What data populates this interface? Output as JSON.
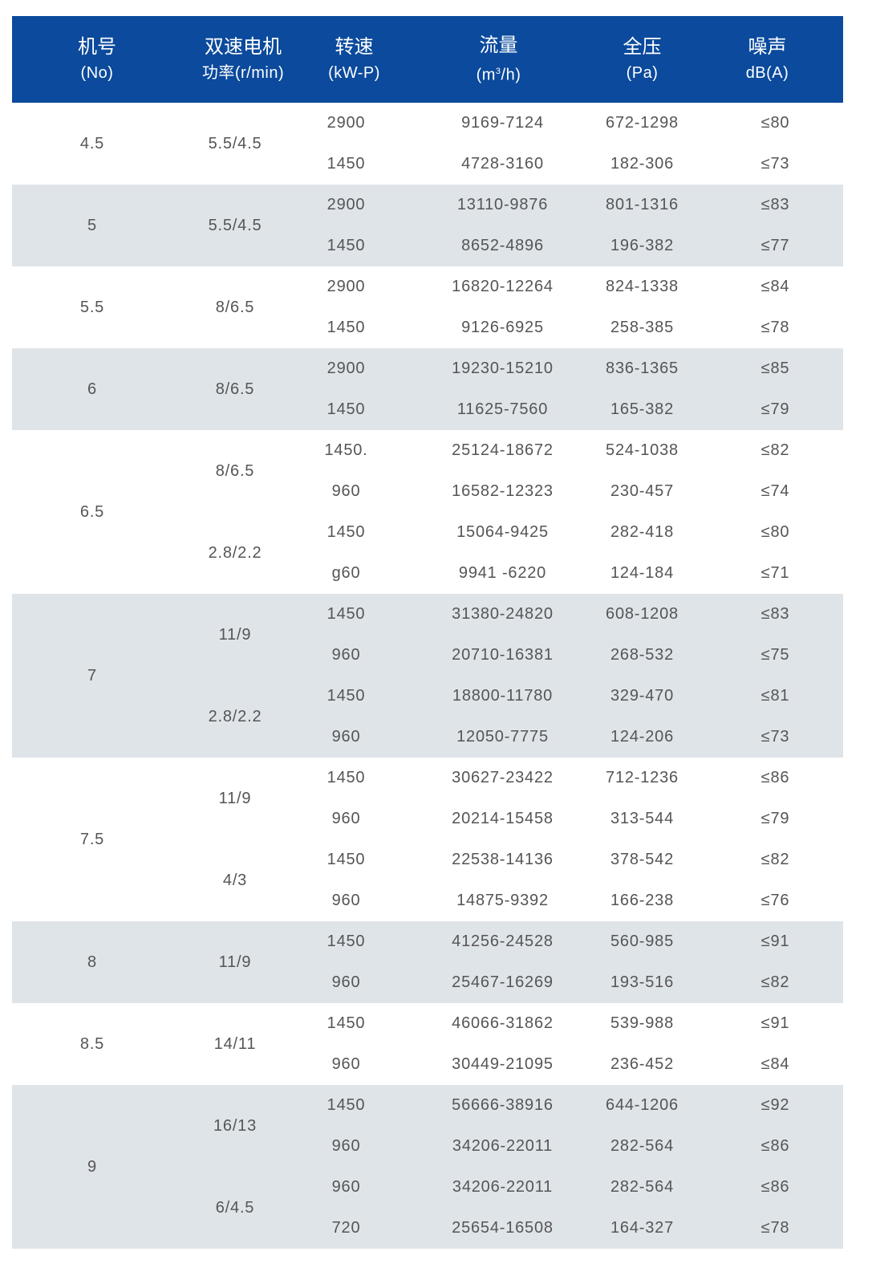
{
  "colors": {
    "header_bg": "#0b4a9c",
    "stripe_bg": "#dfe4e9",
    "text": "#555555"
  },
  "headers": [
    {
      "title": "机号",
      "sub": "(No)"
    },
    {
      "title": "双速电机",
      "sub": "功率(r/min)"
    },
    {
      "title": "转速",
      "sub": "(kW-P)"
    },
    {
      "title": "流量",
      "sub_pre": "(m",
      "sub_sup": "3",
      "sub_post": "/h)"
    },
    {
      "title": "全压",
      "sub": "(Pa)"
    },
    {
      "title": "噪声",
      "sub": "dB(A)"
    }
  ],
  "groups": [
    {
      "no": "4.5",
      "motors": [
        {
          "power": "5.5/4.5",
          "rows": [
            {
              "speed": "2900",
              "flow": "9169-7124",
              "pressure": "672-1298",
              "noise": "≤80"
            },
            {
              "speed": "1450",
              "flow": "4728-3160",
              "pressure": "182-306",
              "noise": "≤73"
            }
          ]
        }
      ]
    },
    {
      "no": "5",
      "motors": [
        {
          "power": "5.5/4.5",
          "rows": [
            {
              "speed": "2900",
              "flow": "13110-9876",
              "pressure": "801-1316",
              "noise": "≤83"
            },
            {
              "speed": "1450",
              "flow": "8652-4896",
              "pressure": "196-382",
              "noise": "≤77"
            }
          ]
        }
      ]
    },
    {
      "no": "5.5",
      "motors": [
        {
          "power": "8/6.5",
          "rows": [
            {
              "speed": "2900",
              "flow": "16820-12264",
              "pressure": "824-1338",
              "noise": "≤84"
            },
            {
              "speed": "1450",
              "flow": "9126-6925",
              "pressure": "258-385",
              "noise": "≤78"
            }
          ]
        }
      ]
    },
    {
      "no": "6",
      "motors": [
        {
          "power": "8/6.5",
          "rows": [
            {
              "speed": "2900",
              "flow": "19230-15210",
              "pressure": "836-1365",
              "noise": "≤85"
            },
            {
              "speed": "1450",
              "flow": "11625-7560",
              "pressure": "165-382",
              "noise": "≤79"
            }
          ]
        }
      ]
    },
    {
      "no": "6.5",
      "motors": [
        {
          "power": "8/6.5",
          "rows": [
            {
              "speed": "1450.",
              "flow": "25124-18672",
              "pressure": "524-1038",
              "noise": "≤82"
            },
            {
              "speed": "960",
              "flow": "16582-12323",
              "pressure": "230-457",
              "noise": "≤74"
            }
          ]
        },
        {
          "power": "2.8/2.2",
          "rows": [
            {
              "speed": "1450",
              "flow": "15064-9425",
              "pressure": "282-418",
              "noise": "≤80"
            },
            {
              "speed": "g60",
              "flow": "9941 -6220",
              "pressure": "124-184",
              "noise": "≤71"
            }
          ]
        }
      ]
    },
    {
      "no": "7",
      "motors": [
        {
          "power": "11/9",
          "rows": [
            {
              "speed": "1450",
              "flow": "31380-24820",
              "pressure": "608-1208",
              "noise": "≤83"
            },
            {
              "speed": "960",
              "flow": "20710-16381",
              "pressure": "268-532",
              "noise": "≤75"
            }
          ]
        },
        {
          "power": "2.8/2.2",
          "rows": [
            {
              "speed": "1450",
              "flow": "18800-11780",
              "pressure": "329-470",
              "noise": "≤81"
            },
            {
              "speed": "960",
              "flow": "12050-7775",
              "pressure": "124-206",
              "noise": "≤73"
            }
          ]
        }
      ]
    },
    {
      "no": "7.5",
      "motors": [
        {
          "power": "11/9",
          "rows": [
            {
              "speed": "1450",
              "flow": "30627-23422",
              "pressure": "712-1236",
              "noise": "≤86"
            },
            {
              "speed": "960",
              "flow": "20214-15458",
              "pressure": "313-544",
              "noise": "≤79"
            }
          ]
        },
        {
          "power": "4/3",
          "rows": [
            {
              "speed": "1450",
              "flow": "22538-14136",
              "pressure": "378-542",
              "noise": "≤82"
            },
            {
              "speed": "960",
              "flow": "14875-9392",
              "pressure": "166-238",
              "noise": "≤76"
            }
          ]
        }
      ]
    },
    {
      "no": "8",
      "motors": [
        {
          "power": "11/9",
          "rows": [
            {
              "speed": "1450",
              "flow": "41256-24528",
              "pressure": "560-985",
              "noise": "≤91"
            },
            {
              "speed": "960",
              "flow": "25467-16269",
              "pressure": "193-516",
              "noise": "≤82"
            }
          ]
        }
      ]
    },
    {
      "no": "8.5",
      "motors": [
        {
          "power": "14/11",
          "rows": [
            {
              "speed": "1450",
              "flow": "46066-31862",
              "pressure": "539-988",
              "noise": "≤91"
            },
            {
              "speed": "960",
              "flow": "30449-21095",
              "pressure": "236-452",
              "noise": "≤84"
            }
          ]
        }
      ]
    },
    {
      "no": "9",
      "motors": [
        {
          "power": "16/13",
          "rows": [
            {
              "speed": "1450",
              "flow": "56666-38916",
              "pressure": "644-1206",
              "noise": "≤92"
            },
            {
              "speed": "960",
              "flow": "34206-22011",
              "pressure": "282-564",
              "noise": "≤86"
            }
          ]
        },
        {
          "power": "6/4.5",
          "rows": [
            {
              "speed": "960",
              "flow": "34206-22011",
              "pressure": "282-564",
              "noise": "≤86"
            },
            {
              "speed": "720",
              "flow": "25654-16508",
              "pressure": "164-327",
              "noise": "≤78"
            }
          ]
        }
      ]
    }
  ]
}
